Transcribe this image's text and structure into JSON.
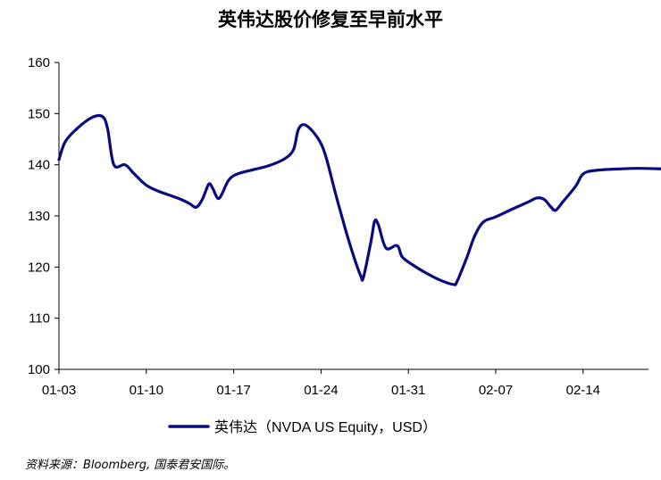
{
  "chart_data": {
    "type": "line",
    "title": "英伟达股价修复至早前水平",
    "xlabel": "",
    "ylabel": "",
    "ylim": [
      100,
      160
    ],
    "yticks": [
      100,
      110,
      120,
      130,
      140,
      150,
      160
    ],
    "xticks": [
      {
        "label": "01-03",
        "day": 0
      },
      {
        "label": "01-10",
        "day": 7
      },
      {
        "label": "01-17",
        "day": 14
      },
      {
        "label": "01-24",
        "day": 21
      },
      {
        "label": "01-31",
        "day": 28
      },
      {
        "label": "02-07",
        "day": 35
      },
      {
        "label": "02-14",
        "day": 42
      }
    ],
    "xlim": [
      0,
      48.5
    ],
    "grid": false,
    "legend_position": "bottom",
    "series": [
      {
        "name": "英伟达（NVDA US Equity，USD）",
        "color": "#0a0a80",
        "points": [
          [
            0,
            141
          ],
          [
            0.5,
            144.5
          ],
          [
            1.5,
            147.2
          ],
          [
            2.7,
            149.3
          ],
          [
            3.5,
            149.4
          ],
          [
            3.9,
            147
          ],
          [
            4.4,
            140
          ],
          [
            5.3,
            140
          ],
          [
            6,
            138.3
          ],
          [
            7,
            136
          ],
          [
            8,
            134.8
          ],
          [
            9.5,
            133.5
          ],
          [
            10.4,
            132.5
          ],
          [
            11,
            131.7
          ],
          [
            11.5,
            133.3
          ],
          [
            12,
            136.2
          ],
          [
            12.3,
            135.5
          ],
          [
            12.7,
            133.5
          ],
          [
            13,
            134
          ],
          [
            13.6,
            137
          ],
          [
            14.3,
            138.2
          ],
          [
            15.5,
            139
          ],
          [
            16.8,
            139.8
          ],
          [
            18.1,
            141.2
          ],
          [
            18.8,
            143
          ],
          [
            19.2,
            147
          ],
          [
            19.8,
            147.7
          ],
          [
            20.8,
            145
          ],
          [
            21.4,
            141.5
          ],
          [
            22.2,
            134
          ],
          [
            23,
            127
          ],
          [
            23.7,
            121.5
          ],
          [
            24.2,
            118.2
          ],
          [
            24.4,
            118
          ],
          [
            25,
            125
          ],
          [
            25.3,
            129
          ],
          [
            25.6,
            128.2
          ],
          [
            26.2,
            123.7
          ],
          [
            27.1,
            124.2
          ],
          [
            27.5,
            122
          ],
          [
            28.3,
            120.5
          ],
          [
            29.3,
            119
          ],
          [
            30.5,
            117.5
          ],
          [
            31.6,
            116.6
          ],
          [
            31.9,
            117.2
          ],
          [
            32.7,
            122
          ],
          [
            33.3,
            126
          ],
          [
            34,
            128.8
          ],
          [
            35,
            129.8
          ],
          [
            36.3,
            131.3
          ],
          [
            37.5,
            132.6
          ],
          [
            38.3,
            133.5
          ],
          [
            38.9,
            133.2
          ],
          [
            39.4,
            131.8
          ],
          [
            39.8,
            131.1
          ],
          [
            40.4,
            132.8
          ],
          [
            41.4,
            135.8
          ],
          [
            42,
            138.2
          ],
          [
            43,
            138.9
          ],
          [
            45,
            139.2
          ],
          [
            46.5,
            139.3
          ],
          [
            48.3,
            139.2
          ]
        ]
      }
    ]
  },
  "source": "资料来源：Bloomberg, 国泰君安国际。"
}
